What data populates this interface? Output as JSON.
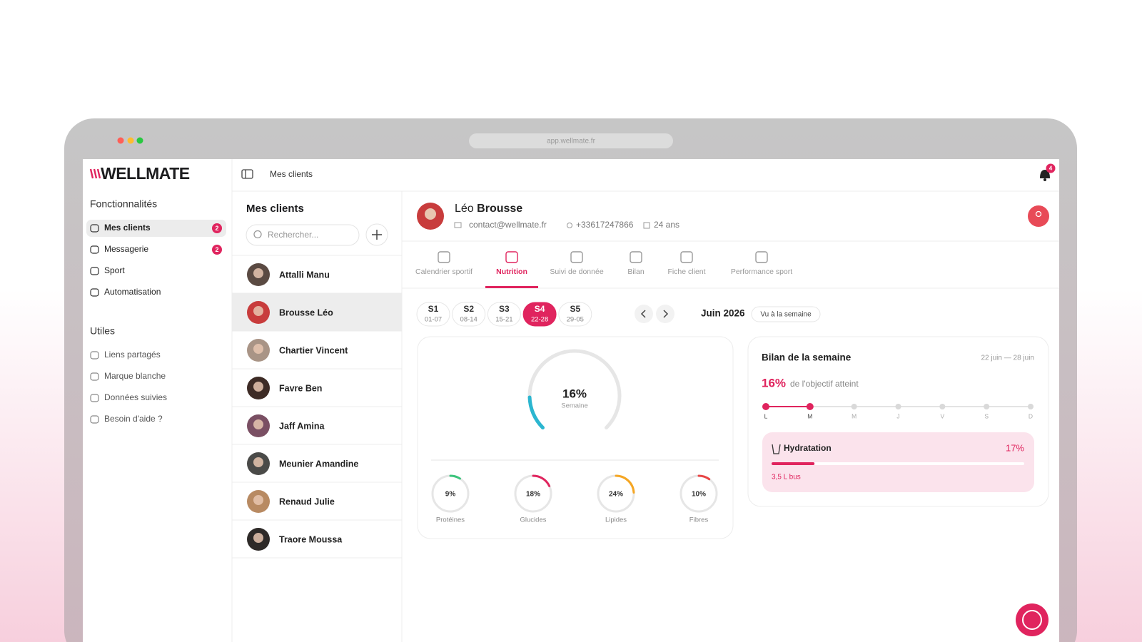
{
  "browser": {
    "url": "app.wellmate.fr"
  },
  "sidebar": {
    "logo": "WELLMATE",
    "sections": [
      {
        "title": "Fonctionnalités",
        "items": [
          {
            "label": "Mes clients",
            "badge": 2,
            "active": true
          },
          {
            "label": "Messagerie",
            "badge": 2
          },
          {
            "label": "Sport"
          },
          {
            "label": "Automatisation"
          }
        ]
      },
      {
        "title": "Utiles",
        "items": [
          {
            "label": "Liens partagés"
          },
          {
            "label": "Marque blanche"
          },
          {
            "label": "Données suivies"
          },
          {
            "label": "Besoin d'aide ?"
          }
        ]
      }
    ]
  },
  "topbar": {
    "breadcrumb": "Mes clients",
    "notifications": 4
  },
  "client_list": {
    "title": "Mes clients",
    "search_placeholder": "Rechercher...",
    "selected": 1,
    "clients": [
      "Attalli Manu",
      "Brousse Léo",
      "Chartier Vincent",
      "Favre Ben",
      "Jaff Amina",
      "Meunier Amandine",
      "Renaud Julie",
      "Traore Moussa"
    ]
  },
  "client": {
    "first_name": "Léo",
    "last_name": "Brousse",
    "email": "contact@wellmate.fr",
    "phone": "+33617247866",
    "age": "24 ans"
  },
  "tabs": {
    "active": 1,
    "items": [
      "Calendrier sportif",
      "Nutrition",
      "Suivi de donnée",
      "Bilan",
      "Fiche client",
      "Performance sport"
    ]
  },
  "weeks": {
    "active": 3,
    "items": [
      {
        "label": "S1",
        "range": "01-07"
      },
      {
        "label": "S2",
        "range": "08-14"
      },
      {
        "label": "S3",
        "range": "15-21"
      },
      {
        "label": "S4",
        "range": "22-28"
      },
      {
        "label": "S5",
        "range": "29-05"
      }
    ],
    "month": "Juin 2026",
    "view": "Vu à la semaine"
  },
  "progress": {
    "value": 16,
    "value_label": "16%",
    "label": "Semaine",
    "macros": [
      {
        "name": "Protéines",
        "value": 9,
        "value_label": "9%",
        "color": "#3cc47c"
      },
      {
        "name": "Glucides",
        "value": 18,
        "value_label": "18%",
        "color": "#e0245e"
      },
      {
        "name": "Lipides",
        "value": 24,
        "value_label": "24%",
        "color": "#f5a623"
      },
      {
        "name": "Fibres",
        "value": 10,
        "value_label": "10%",
        "color": "#e84545"
      }
    ]
  },
  "summary": {
    "title": "Bilan de la semaine",
    "dates": "22 juin — 28 juin",
    "value": 16,
    "value_label": "16%",
    "caption": "de l'objectif atteint",
    "days": [
      {
        "label": "L",
        "done": true
      },
      {
        "label": "M",
        "done": true
      },
      {
        "label": "M",
        "done": false
      },
      {
        "label": "J",
        "done": false
      },
      {
        "label": "V",
        "done": false
      },
      {
        "label": "S",
        "done": false
      },
      {
        "label": "D",
        "done": false
      }
    ],
    "hydration": {
      "label": "Hydratation",
      "value": 17,
      "value_label": "17%",
      "note": "3,5 L bus"
    }
  }
}
